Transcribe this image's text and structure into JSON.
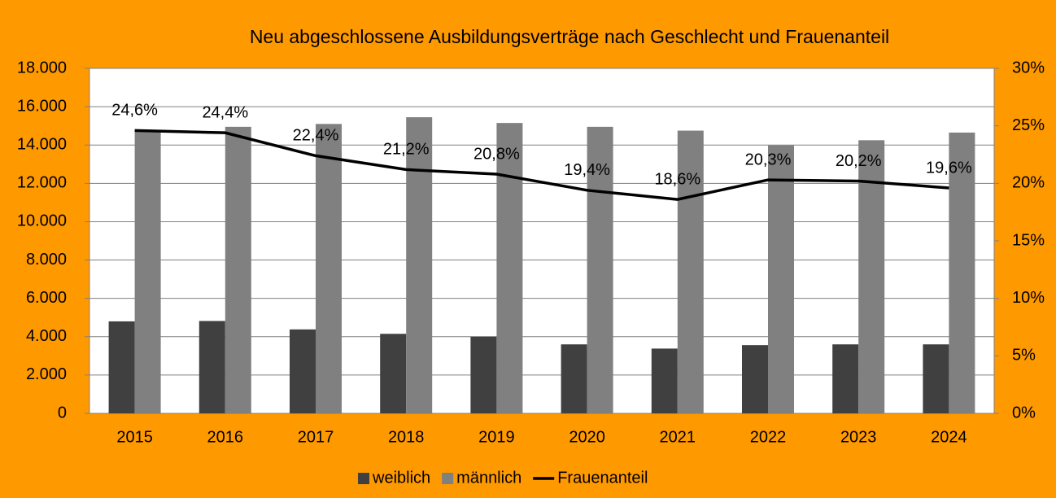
{
  "chart_data": {
    "type": "bar",
    "title": "Neu abgeschlossene Ausbildungsverträge nach Geschlecht und Frauenanteil",
    "categories": [
      "2015",
      "2016",
      "2017",
      "2018",
      "2019",
      "2020",
      "2021",
      "2022",
      "2023",
      "2024"
    ],
    "series": [
      {
        "name": "weiblich",
        "color": "#404040",
        "values": [
          4800,
          4820,
          4380,
          4150,
          4000,
          3600,
          3380,
          3560,
          3600,
          3600
        ]
      },
      {
        "name": "männlich",
        "color": "#808080",
        "values": [
          14750,
          14950,
          15100,
          15450,
          15150,
          14950,
          14750,
          13980,
          14250,
          14650
        ]
      },
      {
        "name": "Frauenanteil",
        "type": "line",
        "axis": "y2",
        "color": "#000000",
        "values": [
          24.6,
          24.4,
          22.4,
          21.2,
          20.8,
          19.4,
          18.6,
          20.3,
          20.2,
          19.6
        ],
        "value_labels": [
          "24,6%",
          "24,4%",
          "22,4%",
          "21,2%",
          "20,8%",
          "19,4%",
          "18,6%",
          "20,3%",
          "20,2%",
          "19,6%"
        ]
      }
    ],
    "ylim": [
      0,
      18000
    ],
    "yticks": [
      0,
      {
        "value": 2000,
        "label": "2.000"
      },
      {
        "value": 4000,
        "label": "4.000"
      },
      {
        "value": 6000,
        "label": "6.000"
      },
      {
        "value": 8000,
        "label": "8.000"
      },
      {
        "value": 10000,
        "label": "10.000"
      },
      {
        "value": 12000,
        "label": "12.000"
      },
      {
        "value": 14000,
        "label": "14.000"
      },
      {
        "value": 16000,
        "label": "16.000"
      },
      {
        "value": 18000,
        "label": "18.000"
      }
    ],
    "y2lim": [
      0,
      30
    ],
    "y2ticks": [
      {
        "value": 0,
        "label": "0%"
      },
      {
        "value": 5,
        "label": "5%"
      },
      {
        "value": 10,
        "label": "10%"
      },
      {
        "value": 15,
        "label": "15%"
      },
      {
        "value": 20,
        "label": "20%"
      },
      {
        "value": 25,
        "label": "25%"
      },
      {
        "value": 30,
        "label": "30%"
      }
    ],
    "grid": true,
    "legend": "bottom"
  }
}
